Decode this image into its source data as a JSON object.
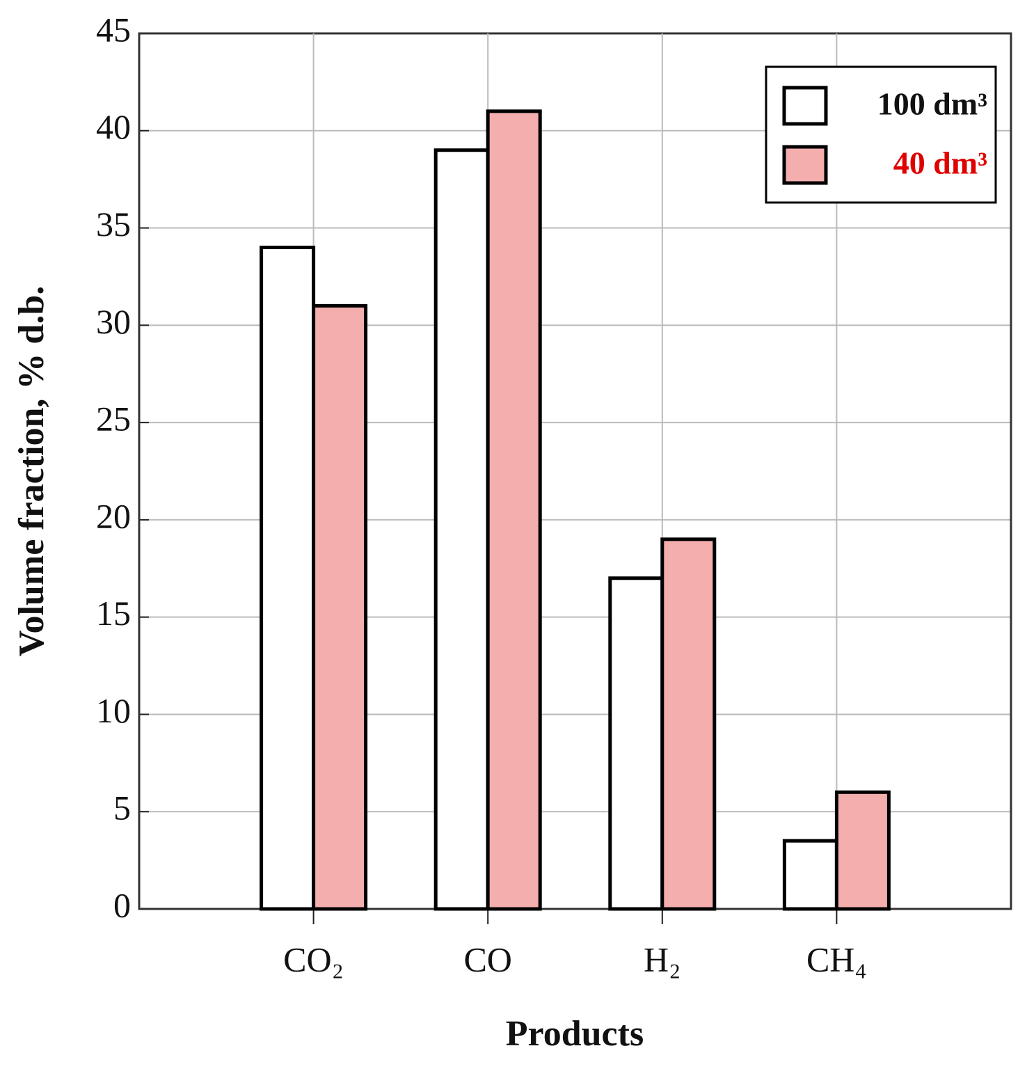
{
  "chart_data": {
    "type": "bar",
    "x_label": "Products",
    "y_label": "Volume fraction, % d.b.",
    "categories": [
      "CO₂",
      "CO",
      "H₂",
      "CH₄"
    ],
    "series": [
      {
        "name": "100 dm³",
        "color": "#ffffff",
        "values": [
          34,
          39,
          17,
          3.5
        ]
      },
      {
        "name": "40 dm³",
        "color": "#f4aeae",
        "values": [
          31,
          41,
          19,
          6
        ]
      }
    ],
    "ylim": [
      0,
      45
    ],
    "yticks": [
      0,
      5,
      10,
      15,
      20,
      25,
      30,
      35,
      40,
      45
    ],
    "grid": true,
    "legend": "upper right"
  }
}
